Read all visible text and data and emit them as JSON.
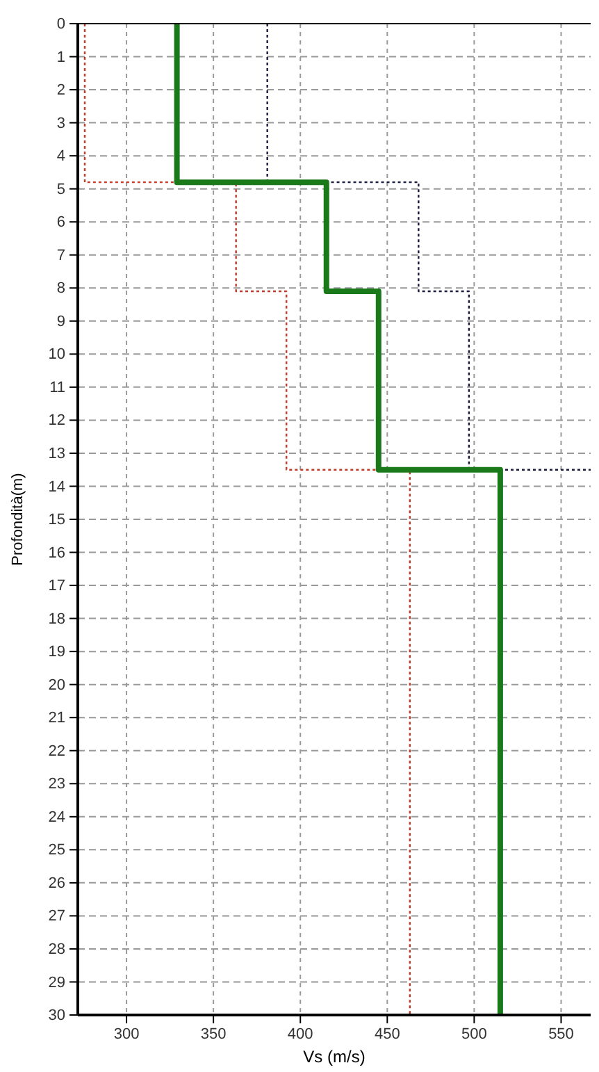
{
  "chart_data": {
    "type": "line",
    "xlabel": "Vs (m/s)",
    "ylabel": "Profondità(m)",
    "xlim": [
      272,
      567
    ],
    "xticks": [
      300,
      350,
      400,
      450,
      500,
      550
    ],
    "ylim": [
      30,
      0
    ],
    "yticks": [
      0,
      1,
      2,
      3,
      4,
      5,
      6,
      7,
      8,
      9,
      10,
      11,
      12,
      13,
      14,
      15,
      16,
      17,
      18,
      19,
      20,
      21,
      22,
      23,
      24,
      25,
      26,
      27,
      28,
      29,
      30
    ],
    "grid": true,
    "series": [
      {
        "color": "#c0392b",
        "line_style": "dotted",
        "x": [
          276,
          276,
          363,
          363,
          392,
          392,
          463,
          463
        ],
        "values": [
          0,
          4.8,
          4.8,
          8.1,
          8.1,
          13.5,
          13.5,
          30
        ]
      },
      {
        "color": "#1a1a40",
        "line_style": "dotted",
        "x": [
          381,
          381,
          468,
          468,
          497,
          497,
          567
        ],
        "values": [
          0,
          4.8,
          4.8,
          8.1,
          8.1,
          13.5,
          13.5
        ]
      },
      {
        "color": "#1a7a1a",
        "line_style": "solid",
        "x": [
          329,
          329,
          415,
          415,
          445,
          445,
          515,
          515
        ],
        "values": [
          0,
          4.8,
          4.8,
          8.1,
          8.1,
          13.5,
          13.5,
          30
        ]
      }
    ]
  }
}
